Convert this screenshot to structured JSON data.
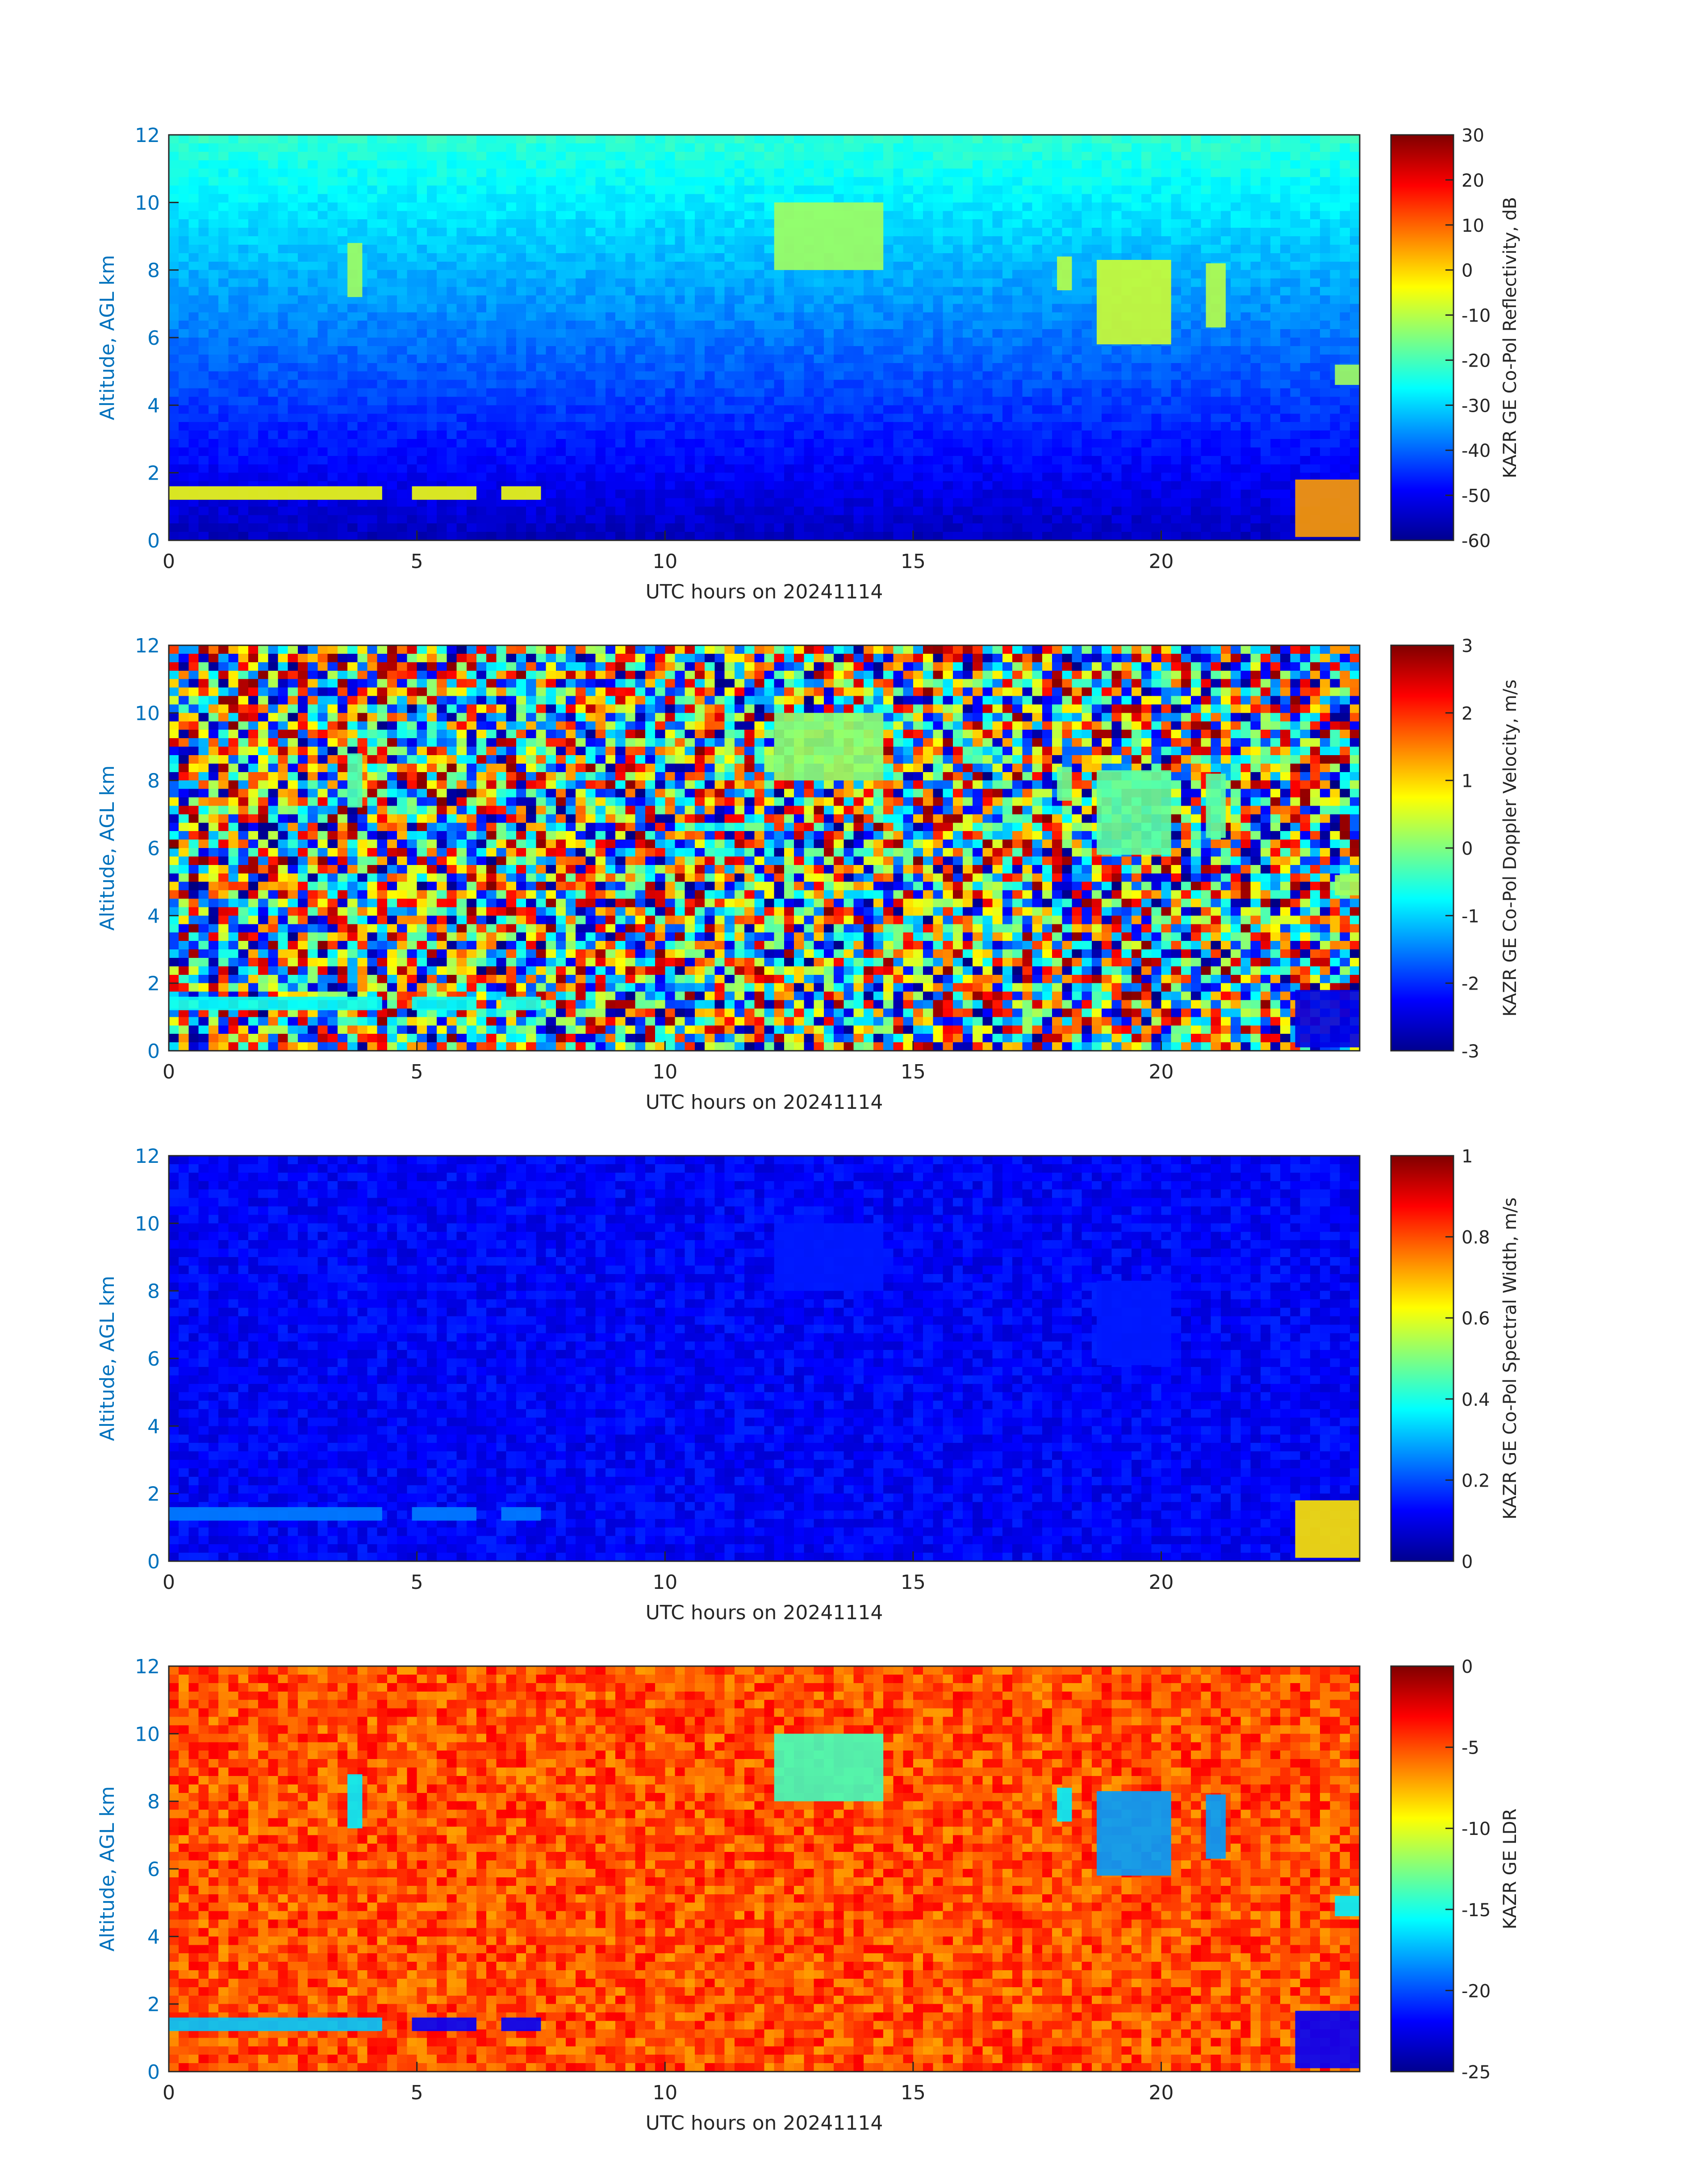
{
  "figure": {
    "colors": {
      "axis_blue": "#0072BD",
      "frame": "#262626",
      "background": "#ffffff"
    }
  },
  "chart_data": [
    {
      "type": "heatmap",
      "id": "reflectivity",
      "xlabel": "UTC hours on 20241114",
      "ylabel": "Altitude, AGL km",
      "xlim": [
        0,
        24
      ],
      "ylim": [
        0,
        12
      ],
      "xticks": [
        0,
        5,
        10,
        15,
        20
      ],
      "yticks": [
        0,
        2,
        4,
        6,
        8,
        10,
        12
      ],
      "grid": false,
      "colormap": "jet",
      "colorbar": {
        "label": "KAZR GE Co-Pol Reflectivity, dB",
        "range": [
          -60,
          30
        ],
        "ticks": [
          -60,
          -50,
          -40,
          -30,
          -20,
          -10,
          0,
          10,
          20,
          30
        ]
      },
      "background_field": "noise floor: ~-55 dB near surface rising to ~-25 dB at 12 km",
      "features": [
        {
          "t0": 0.0,
          "t1": 4.3,
          "z0": 1.2,
          "z1": 1.6,
          "value": -5,
          "desc": "boundary-layer cloud"
        },
        {
          "t0": 4.9,
          "t1": 6.2,
          "z0": 1.2,
          "z1": 1.6,
          "value": -5
        },
        {
          "t0": 6.7,
          "t1": 7.5,
          "z0": 1.2,
          "z1": 1.6,
          "value": -5
        },
        {
          "t0": 3.6,
          "t1": 3.9,
          "z0": 7.2,
          "z1": 8.8,
          "value": -12,
          "desc": "virga streak"
        },
        {
          "t0": 12.2,
          "t1": 14.4,
          "z0": 8.0,
          "z1": 10.0,
          "value": -12,
          "desc": "cirrus fall streaks"
        },
        {
          "t0": 17.9,
          "t1": 18.2,
          "z0": 7.4,
          "z1": 8.4,
          "value": -10
        },
        {
          "t0": 18.7,
          "t1": 20.2,
          "z0": 5.8,
          "z1": 8.3,
          "value": -8
        },
        {
          "t0": 20.9,
          "t1": 21.3,
          "z0": 6.3,
          "z1": 8.2,
          "value": -10
        },
        {
          "t0": 23.5,
          "t1": 24.0,
          "z0": 4.6,
          "z1": 5.2,
          "value": -12
        },
        {
          "t0": 22.7,
          "t1": 24.0,
          "z0": 0.1,
          "z1": 1.8,
          "value": 5,
          "desc": "precipitation near surface"
        }
      ]
    },
    {
      "type": "heatmap",
      "id": "doppler-velocity",
      "xlabel": "UTC hours on 20241114",
      "ylabel": "Altitude, AGL km",
      "xlim": [
        0,
        24
      ],
      "ylim": [
        0,
        12
      ],
      "xticks": [
        0,
        5,
        10,
        15,
        20
      ],
      "yticks": [
        0,
        2,
        4,
        6,
        8,
        10,
        12
      ],
      "grid": false,
      "colormap": "jet",
      "colorbar": {
        "label": "KAZR GE Co-Pol Doppler Velocity, m/s",
        "range": [
          -3,
          3
        ],
        "ticks": [
          -3,
          -2,
          -1,
          0,
          1,
          2,
          3
        ]
      },
      "background_field": "random noise spanning -3 to 3 m/s",
      "features": [
        {
          "t0": 0.0,
          "t1": 4.3,
          "z0": 1.2,
          "z1": 1.6,
          "value": -0.7
        },
        {
          "t0": 4.9,
          "t1": 6.2,
          "z0": 1.2,
          "z1": 1.6,
          "value": -0.7
        },
        {
          "t0": 6.7,
          "t1": 7.5,
          "z0": 1.2,
          "z1": 1.6,
          "value": -0.6
        },
        {
          "t0": 3.6,
          "t1": 3.9,
          "z0": 7.2,
          "z1": 8.8,
          "value": -0.3
        },
        {
          "t0": 12.2,
          "t1": 14.4,
          "z0": 8.0,
          "z1": 10.0,
          "value": 0.1
        },
        {
          "t0": 17.9,
          "t1": 18.2,
          "z0": 7.4,
          "z1": 8.4,
          "value": -0.1
        },
        {
          "t0": 18.7,
          "t1": 20.2,
          "z0": 5.8,
          "z1": 8.3,
          "value": -0.2
        },
        {
          "t0": 20.9,
          "t1": 21.3,
          "z0": 6.3,
          "z1": 8.2,
          "value": -0.2
        },
        {
          "t0": 23.5,
          "t1": 24.0,
          "z0": 4.6,
          "z1": 5.2,
          "value": 0.2
        },
        {
          "t0": 22.7,
          "t1": 24.0,
          "z0": 0.1,
          "z1": 1.8,
          "value": -2.4
        }
      ]
    },
    {
      "type": "heatmap",
      "id": "spectral-width",
      "xlabel": "UTC hours on 20241114",
      "ylabel": "Altitude, AGL km",
      "xlim": [
        0,
        24
      ],
      "ylim": [
        0,
        12
      ],
      "xticks": [
        0,
        5,
        10,
        15,
        20
      ],
      "yticks": [
        0,
        2,
        4,
        6,
        8,
        10,
        12
      ],
      "grid": false,
      "colormap": "jet",
      "colorbar": {
        "label": "KAZR GE Co-Pol Spectral Width, m/s",
        "range": [
          0,
          1
        ],
        "ticks": [
          0,
          0.2,
          0.4,
          0.6,
          0.8,
          1
        ]
      },
      "background_field": "low values ~0.05-0.15 m/s",
      "features": [
        {
          "t0": 0.0,
          "t1": 4.3,
          "z0": 1.2,
          "z1": 1.6,
          "value": 0.25
        },
        {
          "t0": 4.9,
          "t1": 6.2,
          "z0": 1.2,
          "z1": 1.6,
          "value": 0.25
        },
        {
          "t0": 6.7,
          "t1": 7.5,
          "z0": 1.2,
          "z1": 1.6,
          "value": 0.25
        },
        {
          "t0": 12.2,
          "t1": 14.4,
          "z0": 8.0,
          "z1": 10.0,
          "value": 0.15
        },
        {
          "t0": 18.7,
          "t1": 20.2,
          "z0": 5.8,
          "z1": 8.3,
          "value": 0.15
        },
        {
          "t0": 22.7,
          "t1": 24.0,
          "z0": 0.1,
          "z1": 1.8,
          "value": 0.65
        }
      ]
    },
    {
      "type": "heatmap",
      "id": "ldr",
      "xlabel": "UTC hours on 20241114",
      "ylabel": "Altitude, AGL km",
      "xlim": [
        0,
        24
      ],
      "ylim": [
        0,
        12
      ],
      "xticks": [
        0,
        5,
        10,
        15,
        20
      ],
      "yticks": [
        0,
        2,
        4,
        6,
        8,
        10,
        12
      ],
      "grid": false,
      "colormap": "jet",
      "colorbar": {
        "label": "KAZR GE LDR",
        "range": [
          -25,
          0
        ],
        "ticks": [
          -25,
          -20,
          -15,
          -10,
          -5,
          0
        ]
      },
      "background_field": "noise ~-8 to -3",
      "features": [
        {
          "t0": 0.0,
          "t1": 4.3,
          "z0": 1.2,
          "z1": 1.6,
          "value": -17
        },
        {
          "t0": 4.9,
          "t1": 6.2,
          "z0": 1.2,
          "z1": 1.6,
          "value": -22
        },
        {
          "t0": 6.7,
          "t1": 7.5,
          "z0": 1.2,
          "z1": 1.6,
          "value": -22
        },
        {
          "t0": 3.6,
          "t1": 3.9,
          "z0": 7.2,
          "z1": 8.8,
          "value": -16
        },
        {
          "t0": 12.2,
          "t1": 14.4,
          "z0": 8.0,
          "z1": 10.0,
          "value": -14
        },
        {
          "t0": 17.9,
          "t1": 18.2,
          "z0": 7.4,
          "z1": 8.4,
          "value": -16
        },
        {
          "t0": 18.7,
          "t1": 20.2,
          "z0": 5.8,
          "z1": 8.3,
          "value": -18
        },
        {
          "t0": 20.9,
          "t1": 21.3,
          "z0": 6.3,
          "z1": 8.2,
          "value": -18
        },
        {
          "t0": 23.5,
          "t1": 24.0,
          "z0": 4.6,
          "z1": 5.2,
          "value": -16
        },
        {
          "t0": 22.7,
          "t1": 24.0,
          "z0": 0.1,
          "z1": 1.8,
          "value": -22
        }
      ]
    }
  ]
}
